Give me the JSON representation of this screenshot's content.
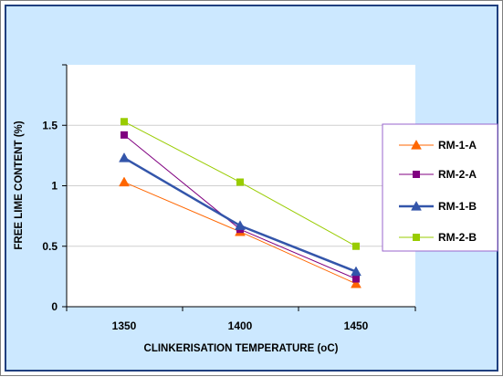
{
  "chart_data": {
    "type": "line",
    "xlabel": "CLINKERISATION TEMPERATURE (oC)",
    "ylabel": "FREE LIME CONTENT (%)",
    "x": [
      1350,
      1400,
      1450
    ],
    "x_tick_labels": [
      "1350",
      "1400",
      "1450"
    ],
    "ylim": [
      0,
      2
    ],
    "y_tick_labels": [
      "0",
      "0.5",
      "1",
      "1.5"
    ],
    "y_ticks": [
      0,
      0.5,
      1,
      1.5
    ],
    "grid": true,
    "legend_position": "right",
    "series": [
      {
        "name": "RM-1-A",
        "values": [
          1.03,
          0.62,
          0.19
        ],
        "color": "#ff6600",
        "marker": "triangle",
        "line_width": 1
      },
      {
        "name": "RM-2-A",
        "values": [
          1.42,
          0.64,
          0.23
        ],
        "color": "#800080",
        "marker": "square",
        "line_width": 1
      },
      {
        "name": "RM-1-B",
        "values": [
          1.23,
          0.67,
          0.29
        ],
        "color": "#3355aa",
        "marker": "triangle",
        "line_width": 2.5
      },
      {
        "name": "RM-2-B",
        "values": [
          1.53,
          1.03,
          0.5
        ],
        "color": "#99cc00",
        "marker": "square",
        "line_width": 1
      }
    ]
  }
}
